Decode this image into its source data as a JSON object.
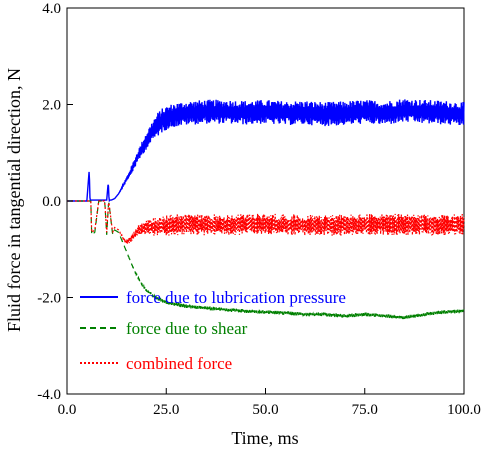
{
  "chart_data": {
    "type": "line",
    "title": "",
    "xlabel": "Time, ms",
    "ylabel": "Fluid force in tangential direction, N",
    "xlim": [
      0,
      100
    ],
    "ylim": [
      -4,
      4
    ],
    "x_ticks": [
      0,
      25,
      50,
      75,
      100
    ],
    "x_tick_labels": [
      "0.0",
      "25.0",
      "50.0",
      "75.0",
      "100.0"
    ],
    "y_ticks": [
      4,
      2,
      0,
      -2,
      -4
    ],
    "y_tick_labels": [
      "4.0",
      "2.0",
      "0.0",
      "-2.0",
      "-4.0"
    ],
    "grid": false,
    "legend_position": "bottom-left",
    "series": [
      {
        "name": "force due to lubrication pressure",
        "color": "#0000ff",
        "style": "solid",
        "x": [
          0,
          5,
          5.6,
          5.8,
          6.0,
          6.4,
          8,
          10,
          10.4,
          10.6,
          10.8,
          11.2,
          12,
          13,
          14,
          15,
          16,
          17,
          18,
          19,
          20,
          21,
          22,
          23,
          24,
          25,
          27,
          30,
          35,
          40,
          45,
          50,
          55,
          60,
          65,
          70,
          75,
          80,
          85,
          90,
          95,
          100
        ],
        "y": [
          0,
          0,
          0.65,
          0,
          0.02,
          0.02,
          0.02,
          0.02,
          0.4,
          0.0,
          0.02,
          0.02,
          0.05,
          0.15,
          0.3,
          0.45,
          0.6,
          0.78,
          0.95,
          1.1,
          1.25,
          1.38,
          1.5,
          1.6,
          1.67,
          1.72,
          1.78,
          1.82,
          1.85,
          1.85,
          1.83,
          1.85,
          1.82,
          1.83,
          1.8,
          1.82,
          1.85,
          1.82,
          1.88,
          1.85,
          1.83,
          1.8
        ],
        "noise_band": 0.25
      },
      {
        "name": "force due to shear",
        "color": "#008000",
        "style": "dashed",
        "x": [
          0,
          6,
          6.2,
          7,
          8,
          9.5,
          10,
          10.5,
          11.5,
          12,
          13,
          14,
          15,
          16,
          17,
          18,
          19,
          20,
          22,
          25,
          30,
          35,
          40,
          45,
          50,
          55,
          60,
          65,
          70,
          75,
          80,
          85,
          90,
          95,
          100
        ],
        "y": [
          0,
          0,
          -0.7,
          -0.65,
          0,
          0,
          -0.7,
          0,
          -0.7,
          -0.6,
          -0.65,
          -0.85,
          -1.05,
          -1.25,
          -1.45,
          -1.6,
          -1.75,
          -1.85,
          -1.98,
          -2.1,
          -2.18,
          -2.22,
          -2.25,
          -2.28,
          -2.3,
          -2.32,
          -2.35,
          -2.35,
          -2.38,
          -2.35,
          -2.38,
          -2.42,
          -2.35,
          -2.3,
          -2.28
        ],
        "noise_band": 0.04
      },
      {
        "name": "combined force",
        "color": "#ff0000",
        "style": "dotted",
        "x": [
          0,
          6,
          6.2,
          7,
          8,
          9.5,
          10,
          10.5,
          11.5,
          12,
          13,
          14,
          15,
          16,
          17,
          18,
          20,
          25,
          30,
          40,
          50,
          60,
          70,
          80,
          90,
          100
        ],
        "y": [
          0,
          0,
          -0.65,
          -0.6,
          0,
          0,
          -0.65,
          0,
          -0.65,
          -0.55,
          -0.6,
          -0.75,
          -0.85,
          -0.8,
          -0.7,
          -0.6,
          -0.55,
          -0.5,
          -0.48,
          -0.5,
          -0.48,
          -0.5,
          -0.5,
          -0.48,
          -0.5,
          -0.48
        ],
        "noise_band": 0.22
      }
    ]
  }
}
